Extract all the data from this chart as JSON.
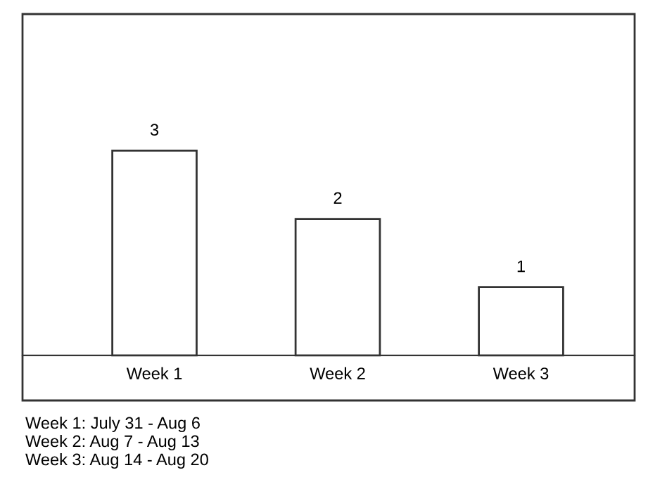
{
  "chart_data": {
    "type": "bar",
    "categories": [
      "Week 1",
      "Week 2",
      "Week 3"
    ],
    "values": [
      3,
      2,
      1
    ],
    "color": "#ffffff",
    "data_labels": true,
    "annotations": [
      "Week 1: July 31 - Aug 6",
      "Week 2: Aug 7 - Aug 13",
      "Week 3: Aug 14 - Aug 20"
    ]
  }
}
